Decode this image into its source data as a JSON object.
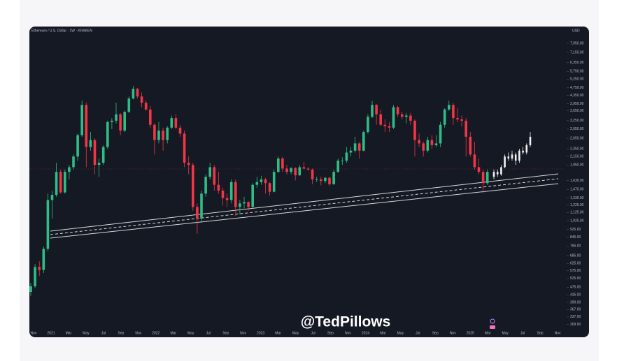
{
  "chart_data": {
    "type": "candlestick",
    "header": "Ethereum / U.S. Dollar · 1W · KRAKEN",
    "currency": "USD",
    "watermark": "@TedPillows",
    "log_scale": true,
    "up_color": "#2ebd85",
    "down_color": "#f23645",
    "projection_color": "#f0f0f0",
    "x_labels": [
      "Nov",
      "2021",
      "Mar",
      "May",
      "Jul",
      "Sep",
      "Nov",
      "2022",
      "Mar",
      "May",
      "Jul",
      "Sep",
      "Nov",
      "2023",
      "Mar",
      "May",
      "Jul",
      "Sep",
      "Nov",
      "2024",
      "Mar",
      "May",
      "Jul",
      "Sep",
      "Nov",
      "2025",
      "Mar",
      "May",
      "Jul",
      "Sep",
      "Nov"
    ],
    "ylim": [
      273,
      9490
    ],
    "yticks": [
      {
        "value": 7950,
        "label": "7,950.00"
      },
      {
        "value": 7150,
        "label": "7,150.00"
      },
      {
        "value": 6350,
        "label": "6,350.00"
      },
      {
        "value": 5750,
        "label": "5,750.00"
      },
      {
        "value": 5250,
        "label": "5,250.00"
      },
      {
        "value": 4750,
        "label": "4,750.00"
      },
      {
        "value": 4350,
        "label": "4,350.00"
      },
      {
        "value": 3950,
        "label": "3,950.00"
      },
      {
        "value": 3650,
        "label": "3,650.00"
      },
      {
        "value": 3250,
        "label": "3,250.00"
      },
      {
        "value": 2950,
        "label": "2,950.00"
      },
      {
        "value": 2650,
        "label": "2,650.00"
      },
      {
        "value": 2350,
        "label": "2,350.00"
      },
      {
        "value": 2150,
        "label": "2,150.00"
      },
      {
        "value": 1950,
        "label": "1,950.00"
      },
      {
        "value": 1630,
        "label": "1,630.00"
      },
      {
        "value": 1470,
        "label": "1,470.00"
      },
      {
        "value": 1330,
        "label": "1,330.00"
      },
      {
        "value": 1225,
        "label": "1,225.00"
      },
      {
        "value": 1125,
        "label": "1,125.00"
      },
      {
        "value": 1025,
        "label": "1,025.00"
      },
      {
        "value": 925,
        "label": "925.00"
      },
      {
        "value": 845,
        "label": "845.00"
      },
      {
        "value": 765,
        "label": "765.00"
      },
      {
        "value": 685,
        "label": "685.00"
      },
      {
        "value": 625,
        "label": "625.00"
      },
      {
        "value": 575,
        "label": "575.00"
      },
      {
        "value": 525,
        "label": "525.00"
      },
      {
        "value": 475,
        "label": "475.00"
      },
      {
        "value": 435,
        "label": "435.00"
      },
      {
        "value": 399,
        "label": "399.00"
      },
      {
        "value": 367,
        "label": "367.00"
      },
      {
        "value": 337,
        "label": "337.00"
      },
      {
        "value": 309,
        "label": "309.00"
      }
    ],
    "candles": [
      [
        450,
        500,
        430,
        480
      ],
      [
        480,
        620,
        470,
        600
      ],
      [
        600,
        640,
        540,
        580
      ],
      [
        580,
        760,
        560,
        740
      ],
      [
        740,
        1400,
        720,
        1300
      ],
      [
        1300,
        1450,
        1050,
        1380
      ],
      [
        1380,
        2000,
        1350,
        1800
      ],
      [
        1800,
        1850,
        1400,
        1420
      ],
      [
        1420,
        1850,
        1400,
        1800
      ],
      [
        1800,
        1950,
        1650,
        1900
      ],
      [
        1900,
        2200,
        1850,
        2150
      ],
      [
        2150,
        2800,
        2050,
        2750
      ],
      [
        2750,
        4100,
        2700,
        3900
      ],
      [
        3900,
        4000,
        1900,
        2400
      ],
      [
        2400,
        2850,
        2300,
        2600
      ],
      [
        2600,
        2650,
        1750,
        1950
      ],
      [
        1950,
        2100,
        1700,
        2000
      ],
      [
        2000,
        2450,
        1950,
        2400
      ],
      [
        2400,
        3250,
        2350,
        3200
      ],
      [
        3200,
        3350,
        2950,
        3250
      ],
      [
        3250,
        4000,
        3150,
        3500
      ],
      [
        3500,
        3550,
        2750,
        2900
      ],
      [
        2900,
        3650,
        2850,
        3600
      ],
      [
        3600,
        4300,
        3550,
        4200
      ],
      [
        4200,
        4850,
        4150,
        4700
      ],
      [
        4700,
        4750,
        4200,
        4300
      ],
      [
        4300,
        4500,
        3800,
        4000
      ],
      [
        4000,
        4100,
        3650,
        3700
      ],
      [
        3700,
        3850,
        3000,
        3100
      ],
      [
        3100,
        3150,
        2200,
        2600
      ],
      [
        2600,
        3200,
        2500,
        2900
      ],
      [
        2900,
        3000,
        2300,
        2600
      ],
      [
        2600,
        3050,
        2500,
        3000
      ],
      [
        3000,
        3450,
        2950,
        3350
      ],
      [
        3350,
        3500,
        2950,
        3000
      ],
      [
        3000,
        3100,
        2700,
        2800
      ],
      [
        2800,
        2900,
        1900,
        2000
      ],
      [
        2000,
        2150,
        1750,
        1950
      ],
      [
        1950,
        2000,
        1150,
        1200
      ],
      [
        1200,
        1250,
        880,
        1050
      ],
      [
        1050,
        1450,
        1000,
        1400
      ],
      [
        1400,
        1750,
        1350,
        1700
      ],
      [
        1700,
        2000,
        1650,
        1900
      ],
      [
        1900,
        1950,
        1450,
        1550
      ],
      [
        1550,
        1800,
        1400,
        1450
      ],
      [
        1450,
        1500,
        1220,
        1330
      ],
      [
        1330,
        1400,
        1200,
        1300
      ],
      [
        1300,
        1650,
        1250,
        1600
      ],
      [
        1600,
        1650,
        1080,
        1200
      ],
      [
        1200,
        1300,
        1100,
        1250
      ],
      [
        1250,
        1350,
        1180,
        1270
      ],
      [
        1270,
        1280,
        1150,
        1200
      ],
      [
        1200,
        1580,
        1190,
        1550
      ],
      [
        1550,
        1700,
        1500,
        1600
      ],
      [
        1600,
        1720,
        1550,
        1650
      ],
      [
        1650,
        1680,
        1400,
        1580
      ],
      [
        1580,
        1600,
        1370,
        1430
      ],
      [
        1430,
        1850,
        1420,
        1800
      ],
      [
        1800,
        2150,
        1780,
        2100
      ],
      [
        2100,
        2140,
        1800,
        1870
      ],
      [
        1870,
        1950,
        1750,
        1800
      ],
      [
        1800,
        1900,
        1750,
        1880
      ],
      [
        1880,
        1900,
        1630,
        1730
      ],
      [
        1730,
        1950,
        1720,
        1900
      ],
      [
        1900,
        2020,
        1860,
        1870
      ],
      [
        1870,
        1900,
        1820,
        1850
      ],
      [
        1850,
        1870,
        1560,
        1650
      ],
      [
        1650,
        1700,
        1600,
        1650
      ],
      [
        1650,
        1700,
        1540,
        1620
      ],
      [
        1620,
        1700,
        1580,
        1680
      ],
      [
        1680,
        1700,
        1530,
        1560
      ],
      [
        1560,
        1850,
        1550,
        1800
      ],
      [
        1800,
        2100,
        1780,
        2050
      ],
      [
        2050,
        2130,
        1950,
        2050
      ],
      [
        2050,
        2400,
        2000,
        2250
      ],
      [
        2250,
        2400,
        2150,
        2300
      ],
      [
        2300,
        2700,
        2250,
        2500
      ],
      [
        2500,
        2550,
        2100,
        2300
      ],
      [
        2300,
        2900,
        2280,
        2850
      ],
      [
        2850,
        3500,
        2800,
        3400
      ],
      [
        3400,
        4100,
        3350,
        3900
      ],
      [
        3900,
        3950,
        3100,
        3500
      ],
      [
        3500,
        3700,
        3050,
        3100
      ],
      [
        3100,
        3300,
        2850,
        3050
      ],
      [
        3050,
        3200,
        2850,
        3000
      ],
      [
        3000,
        3900,
        2950,
        3800
      ],
      [
        3800,
        3850,
        3400,
        3500
      ],
      [
        3500,
        3600,
        3300,
        3400
      ],
      [
        3400,
        3550,
        3150,
        3450
      ],
      [
        3450,
        3550,
        3100,
        3250
      ],
      [
        3250,
        3300,
        2150,
        2600
      ],
      [
        2600,
        2800,
        2400,
        2500
      ],
      [
        2500,
        2550,
        2150,
        2300
      ],
      [
        2300,
        2700,
        2250,
        2600
      ],
      [
        2600,
        2750,
        2350,
        2450
      ],
      [
        2450,
        2750,
        2400,
        2500
      ],
      [
        2500,
        3200,
        2400,
        3100
      ],
      [
        3100,
        3750,
        3000,
        3700
      ],
      [
        3700,
        4100,
        3650,
        3900
      ],
      [
        3900,
        4000,
        3100,
        3350
      ],
      [
        3350,
        3750,
        3200,
        3300
      ],
      [
        3300,
        3450,
        3050,
        3250
      ],
      [
        3250,
        3350,
        2150,
        2700
      ],
      [
        2700,
        2850,
        2150,
        2200
      ],
      [
        2200,
        2550,
        1850,
        1900
      ],
      [
        1900,
        2100,
        1750,
        1800
      ],
      [
        1800,
        1850,
        1400,
        1580
      ],
      [
        1580,
        1850,
        1550,
        1800
      ]
    ],
    "projection": [
      [
        1700,
        1850,
        1650,
        1800
      ],
      [
        1800,
        1850,
        1700,
        1750
      ],
      [
        1750,
        1950,
        1720,
        1900
      ],
      [
        1900,
        2200,
        1880,
        2150
      ],
      [
        2150,
        2250,
        2050,
        2100
      ],
      [
        2100,
        2300,
        2050,
        2200
      ],
      [
        2200,
        2250,
        1950,
        2050
      ],
      [
        2050,
        2350,
        2000,
        2300
      ],
      [
        2300,
        2400,
        2200,
        2250
      ],
      [
        2250,
        2500,
        2200,
        2450
      ],
      [
        2450,
        2850,
        2400,
        2700
      ]
    ]
  }
}
